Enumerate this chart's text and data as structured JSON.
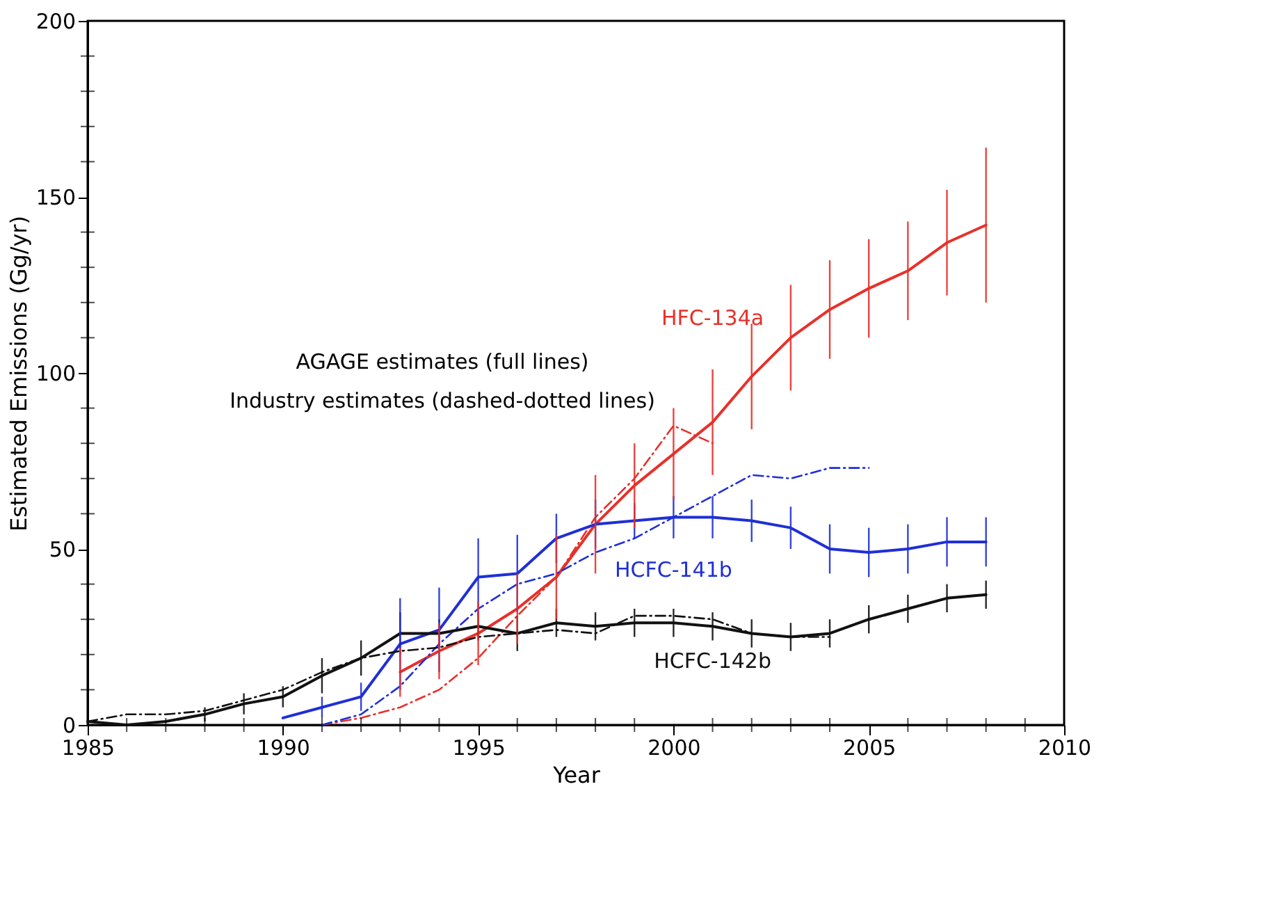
{
  "chart_data": {
    "type": "line",
    "xlabel": "Year",
    "ylabel": "Estimated Emissions  (Gg/yr)",
    "xlim": [
      1985,
      2010
    ],
    "ylim": [
      0,
      200
    ],
    "xticks": [
      1985,
      {
        "value": 1986,
        "label": null
      },
      {
        "value": 1987,
        "label": null
      },
      {
        "value": 1988,
        "label": null
      },
      {
        "value": 1989,
        "label": null
      },
      1990,
      {
        "value": 1991,
        "label": null
      },
      {
        "value": 1992,
        "label": null
      },
      {
        "value": 1993,
        "label": null
      },
      {
        "value": 1994,
        "label": null
      },
      1995,
      {
        "value": 1996,
        "label": null
      },
      {
        "value": 1997,
        "label": null
      },
      {
        "value": 1998,
        "label": null
      },
      {
        "value": 1999,
        "label": null
      },
      2000,
      {
        "value": 2001,
        "label": null
      },
      {
        "value": 2002,
        "label": null
      },
      {
        "value": 2003,
        "label": null
      },
      {
        "value": 2004,
        "label": null
      },
      2005,
      {
        "value": 2006,
        "label": null
      },
      {
        "value": 2007,
        "label": null
      },
      {
        "value": 2008,
        "label": null
      },
      {
        "value": 2009,
        "label": null
      },
      2010
    ],
    "yticks": [
      0,
      {
        "value": 10,
        "label": null
      },
      {
        "value": 20,
        "label": null
      },
      {
        "value": 30,
        "label": null
      },
      {
        "value": 40,
        "label": null
      },
      50,
      {
        "value": 60,
        "label": null
      },
      {
        "value": 70,
        "label": null
      },
      {
        "value": 80,
        "label": null
      },
      {
        "value": 90,
        "label": null
      },
      100,
      {
        "value": 110,
        "label": null
      },
      {
        "value": 120,
        "label": null
      },
      {
        "value": 130,
        "label": null
      },
      {
        "value": 140,
        "label": null
      },
      150,
      {
        "value": 160,
        "label": null
      },
      {
        "value": 170,
        "label": null
      },
      {
        "value": 180,
        "label": null
      },
      {
        "value": 190,
        "label": null
      },
      200
    ],
    "grid": false,
    "marker": "none",
    "annotations": [
      "AGAGE estimates (full lines)",
      "Industry estimates (dashed-dotted lines)"
    ],
    "series": [
      {
        "name": "HFC-134a",
        "color": "#e8302a",
        "line_style": "solid",
        "x": [
          1993,
          1994,
          1995,
          1996,
          1997,
          1998,
          1999,
          2000,
          2001,
          2002,
          2003,
          2004,
          2005,
          2006,
          2007,
          2008
        ],
        "values": [
          15,
          21,
          26,
          33,
          42,
          57,
          68,
          77,
          86,
          99,
          110,
          118,
          124,
          129,
          137,
          142
        ],
        "errors": [
          7,
          8,
          9,
          10,
          12,
          14,
          12,
          13,
          15,
          15,
          15,
          14,
          14,
          14,
          15,
          22
        ]
      },
      {
        "color": "#e8302a",
        "line_style": "dashed",
        "x": [
          1991,
          1992,
          1993,
          1994,
          1995,
          1996,
          1997,
          1998,
          1999,
          2000,
          2001
        ],
        "values": [
          0,
          2,
          5,
          10,
          19,
          31,
          42,
          59,
          70,
          85,
          80
        ]
      },
      {
        "name": "HCFC-141b",
        "color": "#1f2fd6",
        "line_style": "solid",
        "x": [
          1990,
          1991,
          1992,
          1993,
          1994,
          1995,
          1996,
          1997,
          1998,
          1999,
          2000,
          2001,
          2002,
          2003,
          2004,
          2005,
          2006,
          2007,
          2008
        ],
        "values": [
          2,
          5,
          8,
          23,
          27,
          42,
          43,
          53,
          57,
          58,
          59,
          59,
          58,
          56,
          50,
          49,
          50,
          52,
          52
        ],
        "errors": [
          null,
          3,
          4,
          13,
          12,
          11,
          11,
          7,
          7,
          5,
          6,
          6,
          6,
          6,
          7,
          7,
          7,
          7,
          7
        ]
      },
      {
        "color": "#1f2fd6",
        "line_style": "dashed",
        "x": [
          1991,
          1992,
          1993,
          1994,
          1995,
          1996,
          1997,
          1998,
          1999,
          2000,
          2001,
          2002,
          2003,
          2004,
          2005
        ],
        "values": [
          0,
          3,
          11,
          23,
          33,
          40,
          43,
          49,
          53,
          59,
          65,
          71,
          70,
          73,
          73
        ]
      },
      {
        "name": "HCFC-142b",
        "color": "#111111",
        "line_style": "solid",
        "x": [
          1985,
          1986,
          1987,
          1988,
          1989,
          1990,
          1991,
          1992,
          1993,
          1994,
          1995,
          1996,
          1997,
          1998,
          1999,
          2000,
          2001,
          2002,
          2003,
          2004,
          2005,
          2006,
          2007,
          2008
        ],
        "values": [
          1,
          0,
          1,
          3,
          6,
          8,
          14,
          19,
          26,
          26,
          28,
          26,
          29,
          28,
          29,
          29,
          28,
          26,
          25,
          26,
          30,
          33,
          36,
          37
        ],
        "errors": [
          null,
          null,
          null,
          2,
          3,
          3,
          5,
          5,
          6,
          4,
          4,
          5,
          4,
          4,
          4,
          4,
          4,
          4,
          4,
          4,
          4,
          4,
          4,
          4
        ]
      },
      {
        "color": "#111111",
        "line_style": "dashed",
        "x": [
          1985,
          1986,
          1987,
          1988,
          1989,
          1990,
          1991,
          1992,
          1993,
          1994,
          1995,
          1996,
          1997,
          1998,
          1999,
          2000,
          2001,
          2002,
          2003,
          2004
        ],
        "values": [
          1,
          3,
          3,
          4,
          7,
          10,
          15,
          19,
          21,
          22,
          25,
          26,
          27,
          26,
          31,
          31,
          30,
          26,
          25,
          25
        ]
      }
    ]
  }
}
